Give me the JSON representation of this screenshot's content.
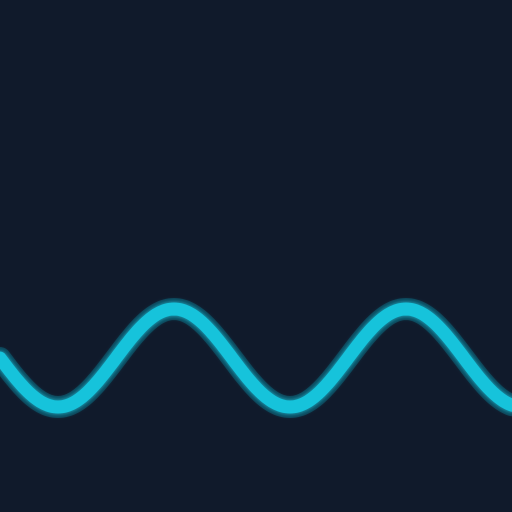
{
  "scene": {
    "background_color": "#101a2b",
    "wave_color": "#15c3db",
    "wave_glow_color": "#0e8aa0",
    "wave_shape": "sine",
    "visible_cycles": 2.2
  }
}
